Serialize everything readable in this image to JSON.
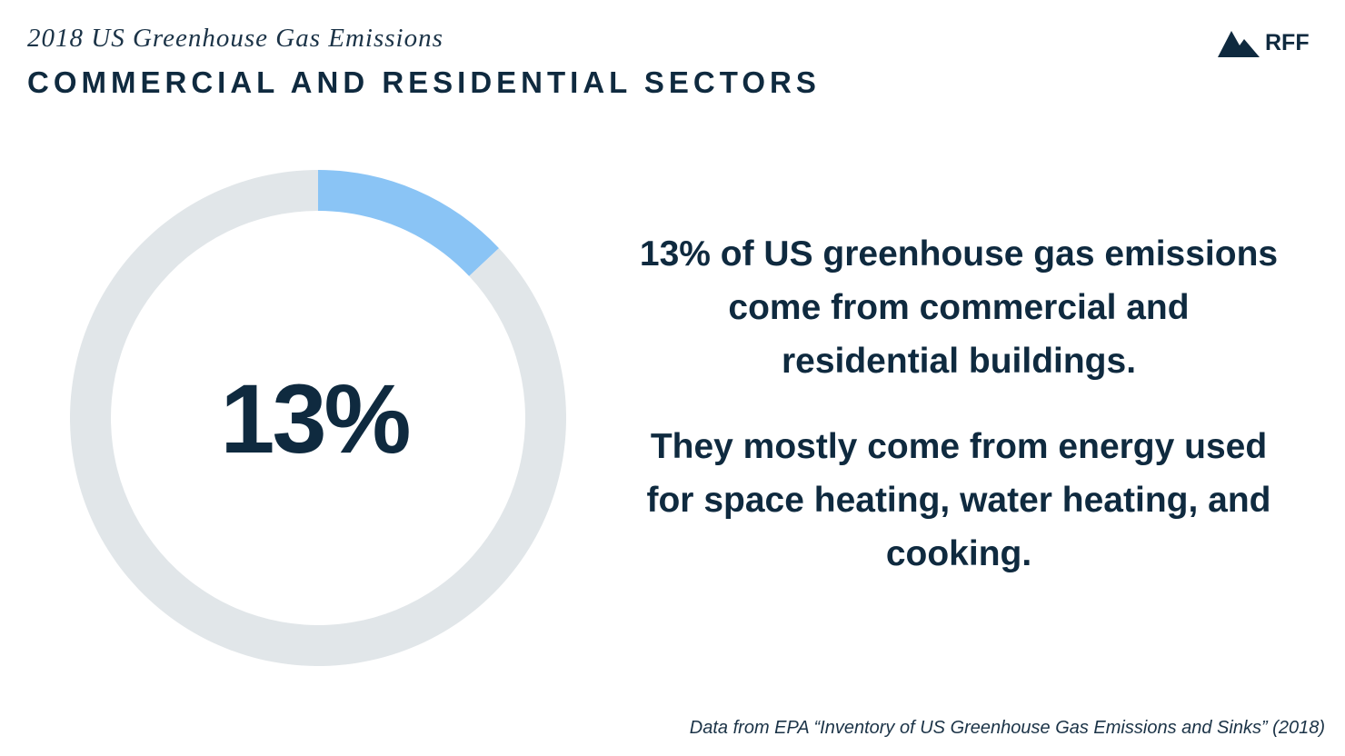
{
  "header": {
    "kicker": "2018 US Greenhouse Gas Emissions",
    "title": "COMMERCIAL AND RESIDENTIAL SECTORS"
  },
  "brand": {
    "logo_text": "RFF",
    "logo_icon": "mountain-icon"
  },
  "chart_data": {
    "type": "pie",
    "variant": "donut",
    "center_label": "13%",
    "slices": [
      {
        "value": 13,
        "color": "#8ac4f5"
      },
      {
        "value": 87,
        "color": "#e1e6e9"
      }
    ]
  },
  "body": {
    "paragraph_1": "13% of US greenhouse gas emissions come from commercial and residential buildings.",
    "paragraph_2": "They mostly come from energy used for space heating, water heating, and cooking."
  },
  "footer": {
    "source": "Data from EPA “Inventory of US Greenhouse Gas Emissions and Sinks” (2018)"
  },
  "colors": {
    "text": "#0f2a3f",
    "accent": "#8ac4f5",
    "track": "#e1e6e9",
    "background": "#ffffff"
  }
}
